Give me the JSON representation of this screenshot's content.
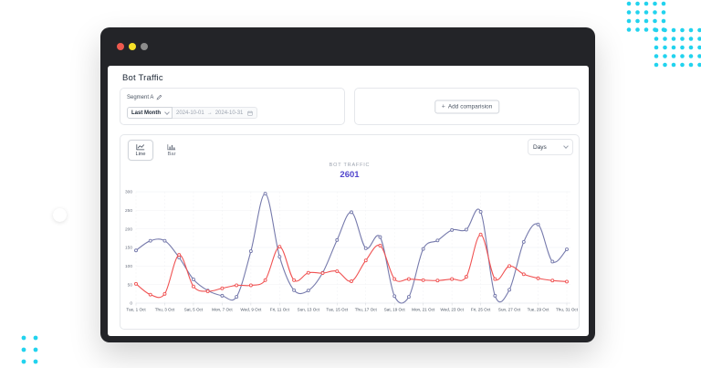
{
  "window": {
    "traffic_light_colors": [
      "#ed594e",
      "#f5e027",
      "#8c8c8c"
    ]
  },
  "header": {
    "title": "Bot Traffic"
  },
  "segment_panel": {
    "label": "Segment A",
    "range_select_value": "Last Month",
    "date_start": "2024-10-01",
    "arrow": "→",
    "date_end": "2024-10-31"
  },
  "comparison_panel": {
    "plus": "+",
    "add_label": "Add comparision"
  },
  "toolbar": {
    "line_label": "Line",
    "bar_label": "Bar",
    "interval_value": "Days"
  },
  "chart_header": {
    "label": "BOT TRAFFIC",
    "value": "2601"
  },
  "decorations": {
    "dot_color": "#22d3ee",
    "circle_color": "#ffffff"
  },
  "colors": {
    "frame": "#232428",
    "accent_value": "#5145cd",
    "grid": "#f3f4f6",
    "axis_line": "#e5e7eb",
    "tick_text": "#6b7280",
    "x_label_text": "#4b5563"
  },
  "chart_data": {
    "type": "line",
    "title": "BOT TRAFFIC",
    "total_label": "2601",
    "x_unit": "day of October 2024",
    "x": [
      1,
      2,
      3,
      4,
      5,
      6,
      7,
      8,
      9,
      10,
      11,
      12,
      13,
      14,
      15,
      16,
      17,
      18,
      19,
      20,
      21,
      22,
      23,
      24,
      25,
      26,
      27,
      28,
      29,
      30,
      31
    ],
    "tick_days": [
      1,
      3,
      5,
      7,
      9,
      11,
      13,
      15,
      17,
      19,
      21,
      23,
      25,
      27,
      29,
      31
    ],
    "tick_labels": [
      "Tue, 1 Oct",
      "Thu, 3 Oct",
      "Sat, 5 Oct",
      "Mon, 7 Oct",
      "Wed, 9 Oct",
      "Fri, 11 Oct",
      "Sun, 13 Oct",
      "Tue, 15 Oct",
      "Thu, 17 Oct",
      "Sat, 19 Oct",
      "Mon, 21 Oct",
      "Wed, 23 Oct",
      "Fri, 25 Oct",
      "Sun, 27 Oct",
      "Tue, 29 Oct",
      "Thu, 31 Oct"
    ],
    "ylim": [
      0,
      300
    ],
    "yticks": [
      0,
      50,
      100,
      150,
      200,
      250,
      300
    ],
    "grid": true,
    "legend": "none",
    "curve": "smooth",
    "series": [
      {
        "name": "series-1",
        "color": "#767AAC",
        "values": [
          142,
          168,
          168,
          123,
          64,
          34,
          20,
          17,
          140,
          295,
          125,
          35,
          34,
          82,
          170,
          245,
          148,
          178,
          19,
          17,
          146,
          169,
          197,
          198,
          246,
          20,
          36,
          165,
          212,
          112,
          145
        ]
      },
      {
        "name": "series-2",
        "color": "#F05252",
        "values": [
          52,
          23,
          25,
          130,
          45,
          32,
          40,
          48,
          48,
          62,
          152,
          62,
          82,
          81,
          86,
          59,
          115,
          155,
          65,
          65,
          62,
          61,
          65,
          71,
          185,
          65,
          100,
          78,
          67,
          61,
          58
        ]
      }
    ]
  }
}
